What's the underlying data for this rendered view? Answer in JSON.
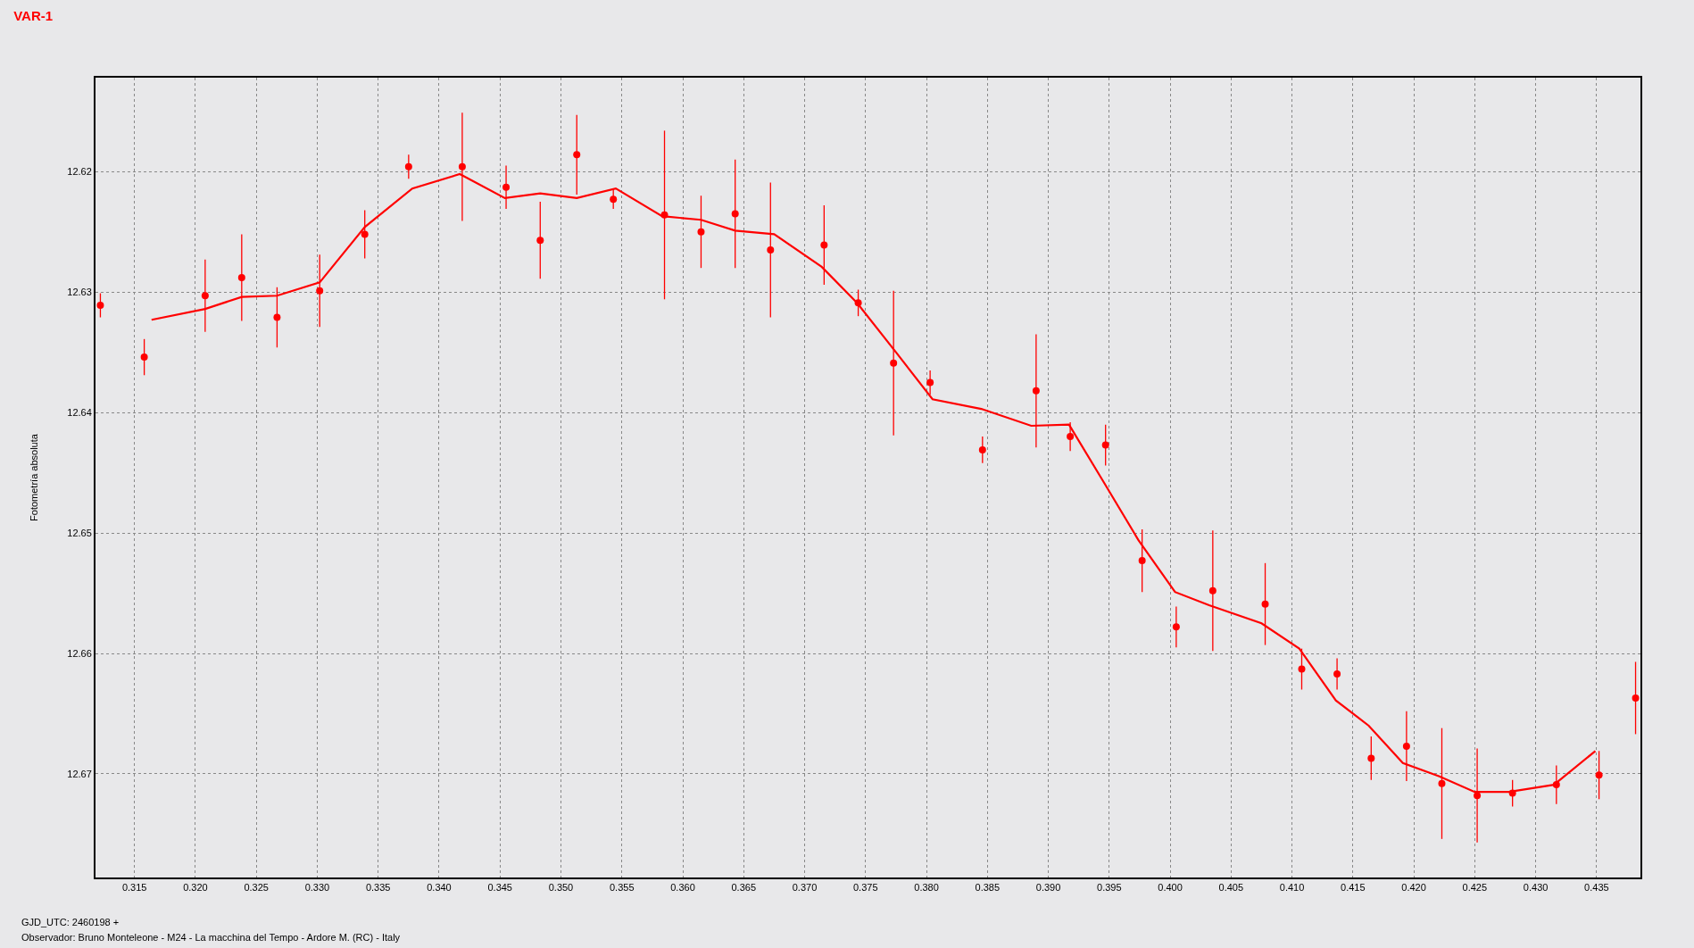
{
  "chart_data": {
    "type": "scatter",
    "title": "VAR-1",
    "ylabel": "Fotometría absoluta",
    "annotations": [
      "GJD_UTC: 2460198 +",
      "Observador: Bruno Monteleone - M24 - La macchina del Tempo - Ardore M. (RC) - Italy"
    ],
    "xlim": [
      0.3118,
      0.4386
    ],
    "ylim": [
      12.6786,
      12.6122
    ],
    "xticks": [
      {
        "value": 0.315,
        "label": "0.315"
      },
      {
        "value": 0.32,
        "label": "0.320"
      },
      {
        "value": 0.325,
        "label": "0.325"
      },
      {
        "value": 0.33,
        "label": "0.330"
      },
      {
        "value": 0.335,
        "label": "0.335"
      },
      {
        "value": 0.34,
        "label": "0.340"
      },
      {
        "value": 0.345,
        "label": "0.345"
      },
      {
        "value": 0.35,
        "label": "0.350"
      },
      {
        "value": 0.355,
        "label": "0.355"
      },
      {
        "value": 0.36,
        "label": "0.360"
      },
      {
        "value": 0.365,
        "label": "0.365"
      },
      {
        "value": 0.37,
        "label": "0.370"
      },
      {
        "value": 0.375,
        "label": "0.375"
      },
      {
        "value": 0.38,
        "label": "0.380"
      },
      {
        "value": 0.385,
        "label": "0.385"
      },
      {
        "value": 0.39,
        "label": "0.390"
      },
      {
        "value": 0.395,
        "label": "0.395"
      },
      {
        "value": 0.4,
        "label": "0.400"
      },
      {
        "value": 0.405,
        "label": "0.405"
      },
      {
        "value": 0.41,
        "label": "0.410"
      },
      {
        "value": 0.415,
        "label": "0.415"
      },
      {
        "value": 0.42,
        "label": "0.420"
      },
      {
        "value": 0.425,
        "label": "0.425"
      },
      {
        "value": 0.43,
        "label": "0.430"
      },
      {
        "value": 0.435,
        "label": "0.435"
      }
    ],
    "yticks": [
      12.62,
      12.63,
      12.64,
      12.65,
      12.66,
      12.67
    ],
    "grid": true,
    "series": [
      {
        "color": "#ff0000",
        "marker": "circle",
        "x": [
          0.3122,
          0.3158,
          0.3208,
          0.3238,
          0.3267,
          0.3302,
          0.3339,
          0.3375,
          0.3419,
          0.3455,
          0.3483,
          0.3513,
          0.3543,
          0.3585,
          0.3615,
          0.3643,
          0.3672,
          0.3716,
          0.3744,
          0.3773,
          0.3803,
          0.3846,
          0.389,
          0.3918,
          0.3947,
          0.3977,
          0.4005,
          0.4035,
          0.4078,
          0.4108,
          0.4137,
          0.4165,
          0.4194,
          0.4223,
          0.4252,
          0.4281,
          0.4317,
          0.4352,
          0.4382
        ],
        "values": [
          12.6311,
          12.6354,
          12.6303,
          12.6288,
          12.6321,
          12.6299,
          12.6252,
          12.6196,
          12.6196,
          12.6213,
          12.6257,
          12.6186,
          12.6223,
          12.6236,
          12.625,
          12.6235,
          12.6265,
          12.6261,
          12.6309,
          12.6359,
          12.6375,
          12.6431,
          12.6382,
          12.642,
          12.6427,
          12.6523,
          12.6578,
          12.6548,
          12.6559,
          12.6613,
          12.6617,
          12.6687,
          12.6677,
          12.6708,
          12.6718,
          12.6716,
          12.6709,
          12.6701,
          12.6637
        ],
        "errors": [
          0.001,
          0.0015,
          0.003,
          0.0036,
          0.0025,
          0.003,
          0.002,
          0.001,
          0.0045,
          0.0018,
          0.0032,
          0.0033,
          0.0008,
          0.007,
          0.003,
          0.0045,
          0.0056,
          0.0033,
          0.0011,
          0.006,
          0.001,
          0.0011,
          0.0047,
          0.0012,
          0.0017,
          0.0026,
          0.0017,
          0.005,
          0.0034,
          0.0017,
          0.0013,
          0.0018,
          0.0029,
          0.0046,
          0.0039,
          0.0011,
          0.0016,
          0.002,
          0.003
        ]
      },
      {
        "type": "line",
        "color": "#ff0000",
        "line_style": "solid",
        "x": [
          0.3164,
          0.3208,
          0.3238,
          0.3267,
          0.3302,
          0.3339,
          0.3378,
          0.3417,
          0.3454,
          0.3483,
          0.3513,
          0.3545,
          0.3583,
          0.3615,
          0.3643,
          0.3675,
          0.3714,
          0.3743,
          0.3775,
          0.3805,
          0.3845,
          0.3886,
          0.3917,
          0.3945,
          0.3974,
          0.4004,
          0.4032,
          0.4075,
          0.4106,
          0.4136,
          0.4163,
          0.4191,
          0.4221,
          0.425,
          0.4278,
          0.4315,
          0.4349
        ],
        "values": [
          12.6323,
          12.6314,
          12.6304,
          12.6303,
          12.6292,
          12.6246,
          12.6214,
          12.6202,
          12.6222,
          12.6218,
          12.6222,
          12.6214,
          12.6237,
          12.624,
          12.6249,
          12.6252,
          12.6279,
          12.6309,
          12.635,
          12.6389,
          12.6397,
          12.6411,
          12.641,
          12.6457,
          12.6506,
          12.6549,
          12.656,
          12.6575,
          12.6596,
          12.6639,
          12.666,
          12.6691,
          12.6702,
          12.6715,
          12.6715,
          12.6709,
          12.6681
        ]
      }
    ]
  }
}
